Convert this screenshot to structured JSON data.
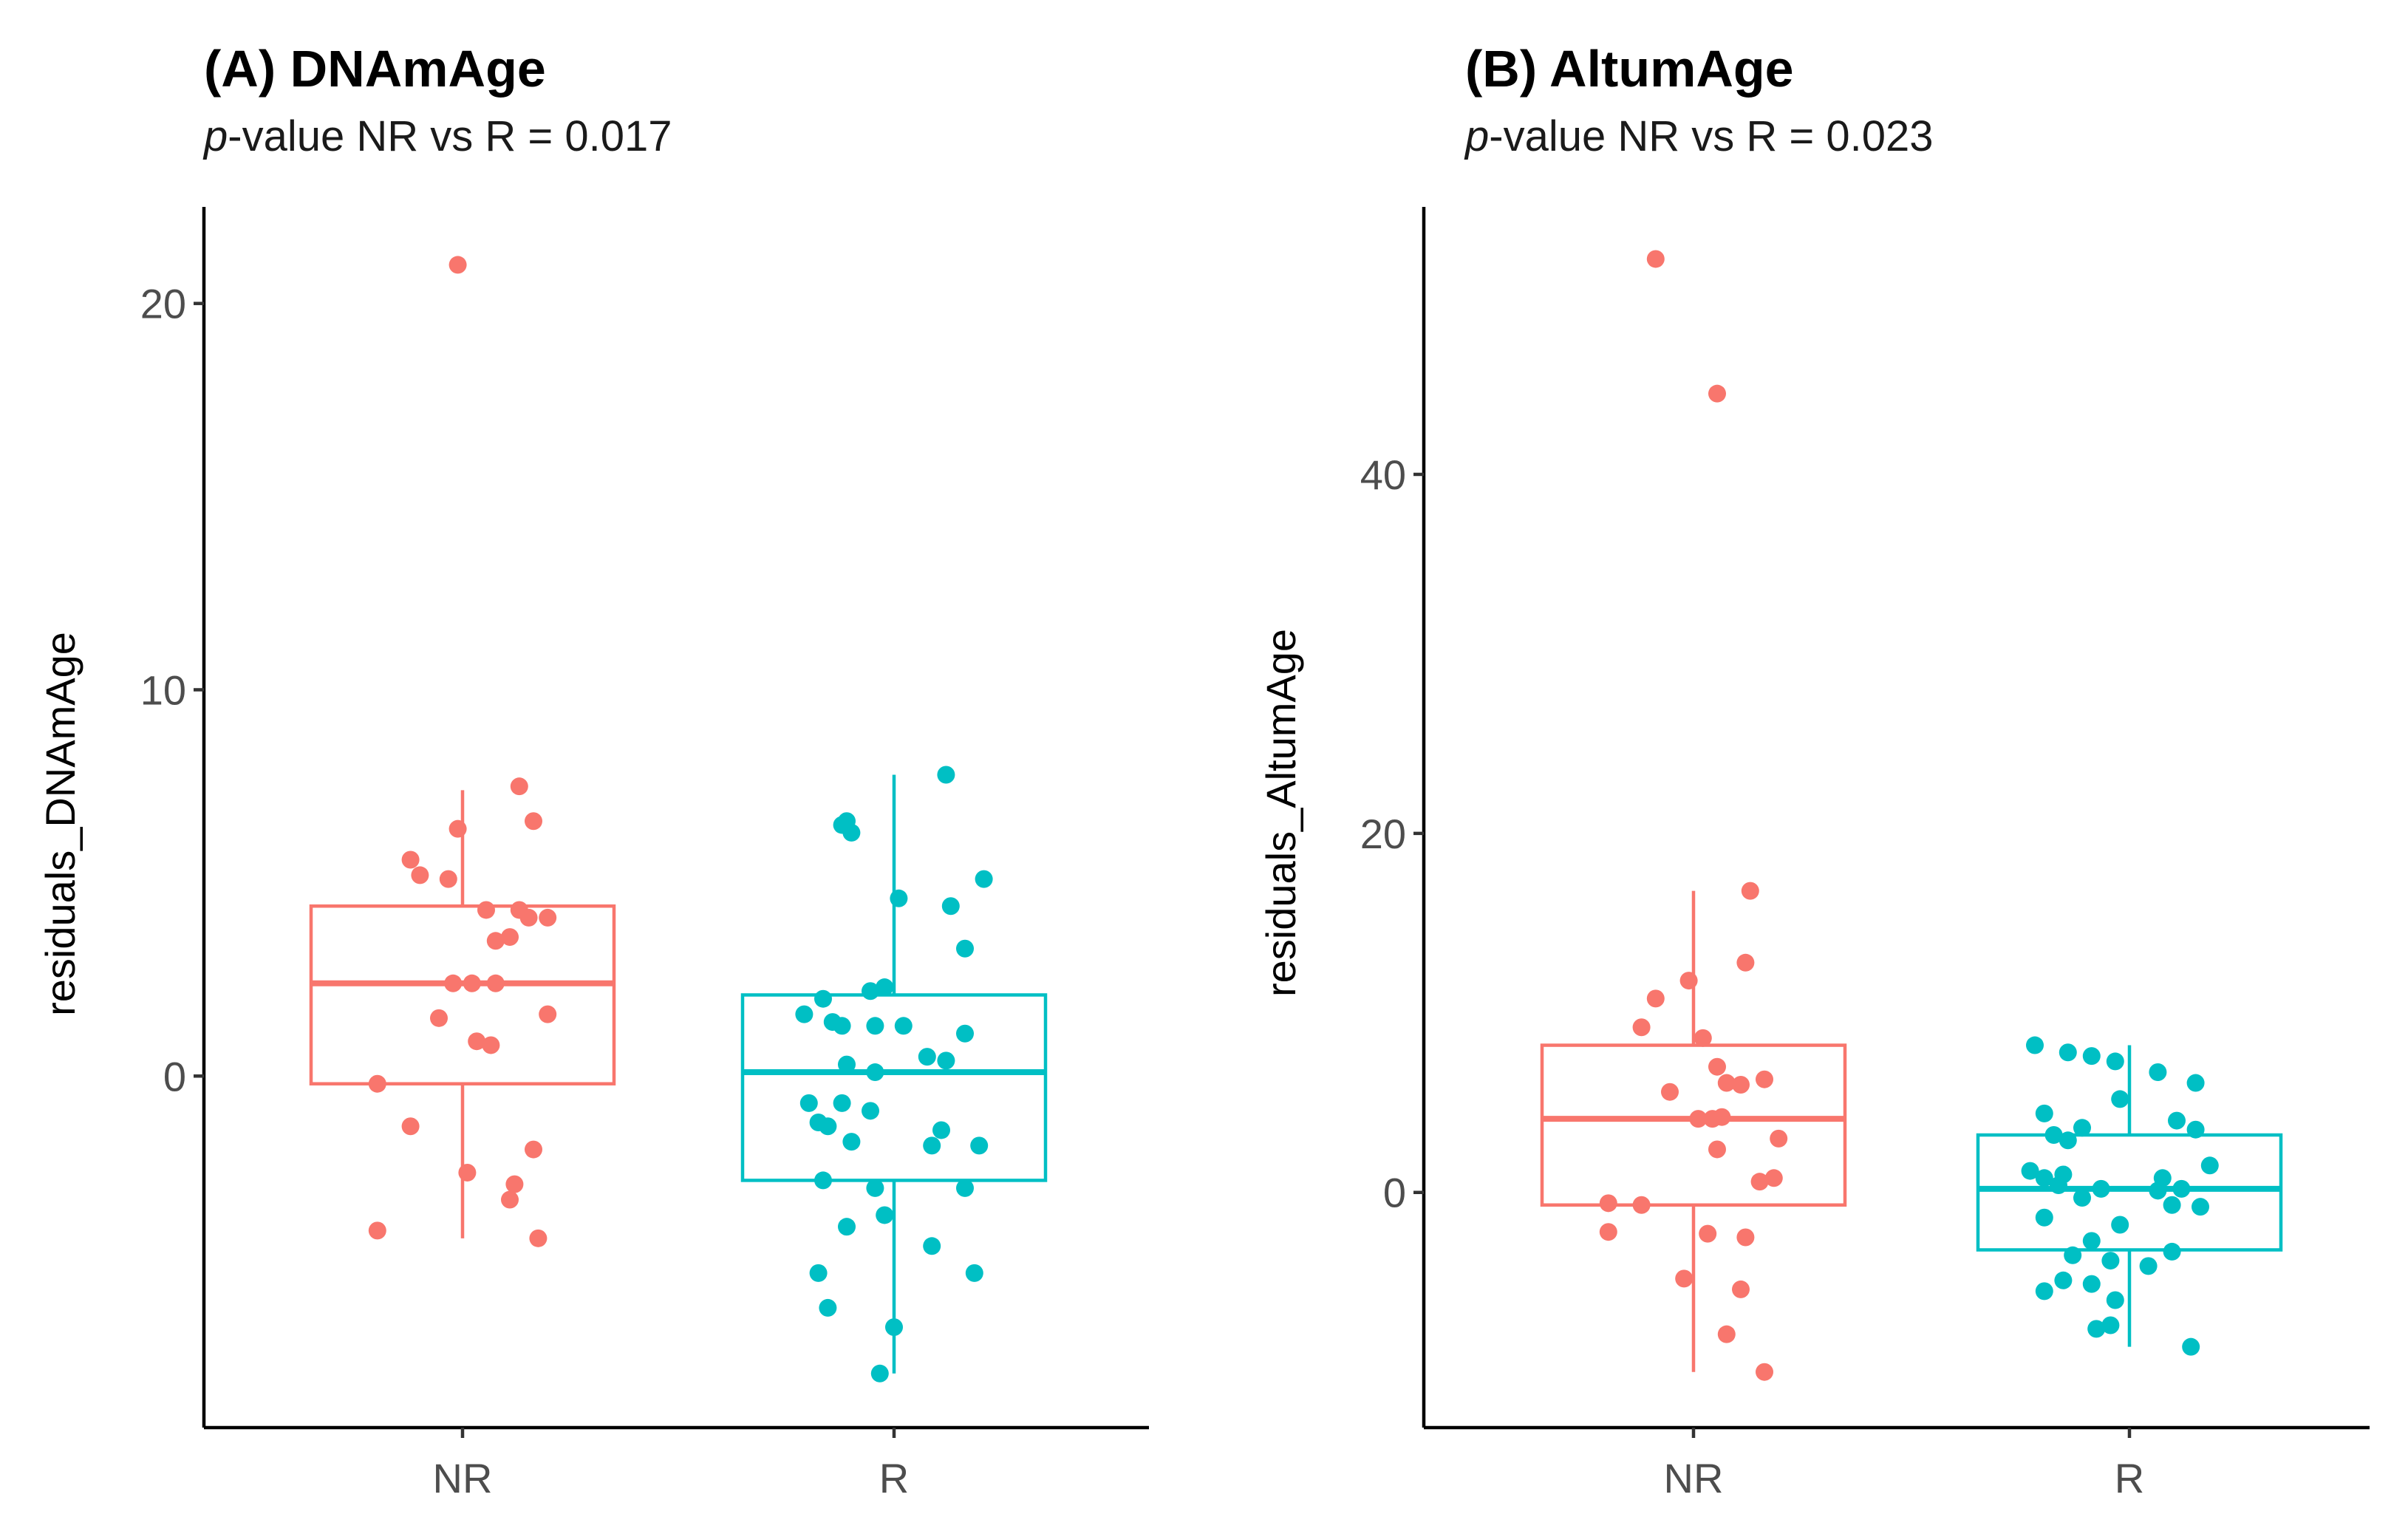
{
  "chart_data": [
    {
      "type": "box",
      "title": "(A) DNAmAge",
      "subtitle_prefix": "p",
      "subtitle_rest": "-value NR vs R = 0.017",
      "xlabel": "",
      "ylabel": "residuals_DNAmAge",
      "categories": [
        "NR",
        "R"
      ],
      "yticks": [
        "0",
        "10",
        "20"
      ],
      "ytick_values": [
        0,
        10,
        20
      ],
      "ylim": [
        -9.1,
        22.5
      ],
      "colors": {
        "NR": "#F8766D",
        "R": "#00BFC4"
      },
      "boxes": [
        {
          "category": "NR",
          "lower_whisker": -4.2,
          "q1": -0.2,
          "median": 2.4,
          "q3": 4.4,
          "upper_whisker": 7.4
        },
        {
          "category": "R",
          "lower_whisker": -7.7,
          "q1": -2.7,
          "median": 0.1,
          "q3": 2.1,
          "upper_whisker": 7.8
        }
      ],
      "points": [
        {
          "category": "NR",
          "jitter": -0.01,
          "y": 21.0
        },
        {
          "category": "NR",
          "jitter": 0.12,
          "y": 7.5
        },
        {
          "category": "NR",
          "jitter": 0.15,
          "y": 6.6
        },
        {
          "category": "NR",
          "jitter": -0.01,
          "y": 6.4
        },
        {
          "category": "NR",
          "jitter": -0.11,
          "y": 5.6
        },
        {
          "category": "NR",
          "jitter": -0.09,
          "y": 5.2
        },
        {
          "category": "NR",
          "jitter": -0.03,
          "y": 5.1
        },
        {
          "category": "NR",
          "jitter": 0.05,
          "y": 4.3
        },
        {
          "category": "NR",
          "jitter": 0.12,
          "y": 4.3
        },
        {
          "category": "NR",
          "jitter": 0.14,
          "y": 4.1
        },
        {
          "category": "NR",
          "jitter": 0.18,
          "y": 4.1
        },
        {
          "category": "NR",
          "jitter": 0.1,
          "y": 3.6
        },
        {
          "category": "NR",
          "jitter": 0.07,
          "y": 3.5
        },
        {
          "category": "NR",
          "jitter": -0.02,
          "y": 2.4
        },
        {
          "category": "NR",
          "jitter": 0.02,
          "y": 2.4
        },
        {
          "category": "NR",
          "jitter": 0.07,
          "y": 2.4
        },
        {
          "category": "NR",
          "jitter": 0.18,
          "y": 1.6
        },
        {
          "category": "NR",
          "jitter": -0.05,
          "y": 1.5
        },
        {
          "category": "NR",
          "jitter": 0.03,
          "y": 0.9
        },
        {
          "category": "NR",
          "jitter": 0.06,
          "y": 0.8
        },
        {
          "category": "NR",
          "jitter": -0.18,
          "y": -0.2
        },
        {
          "category": "NR",
          "jitter": -0.11,
          "y": -1.3
        },
        {
          "category": "NR",
          "jitter": 0.15,
          "y": -1.9
        },
        {
          "category": "NR",
          "jitter": 0.01,
          "y": -2.5
        },
        {
          "category": "NR",
          "jitter": 0.11,
          "y": -2.8
        },
        {
          "category": "NR",
          "jitter": 0.1,
          "y": -3.2
        },
        {
          "category": "NR",
          "jitter": -0.18,
          "y": -4.0
        },
        {
          "category": "NR",
          "jitter": 0.16,
          "y": -4.2
        },
        {
          "category": "R",
          "jitter": 0.11,
          "y": 7.8
        },
        {
          "category": "R",
          "jitter": -0.1,
          "y": 6.6
        },
        {
          "category": "R",
          "jitter": -0.11,
          "y": 6.5
        },
        {
          "category": "R",
          "jitter": -0.09,
          "y": 6.3
        },
        {
          "category": "R",
          "jitter": 0.19,
          "y": 5.1
        },
        {
          "category": "R",
          "jitter": 0.01,
          "y": 4.6
        },
        {
          "category": "R",
          "jitter": 0.12,
          "y": 4.4
        },
        {
          "category": "R",
          "jitter": 0.15,
          "y": 3.3
        },
        {
          "category": "R",
          "jitter": -0.02,
          "y": 2.3
        },
        {
          "category": "R",
          "jitter": -0.05,
          "y": 2.2
        },
        {
          "category": "R",
          "jitter": -0.15,
          "y": 2.0
        },
        {
          "category": "R",
          "jitter": -0.19,
          "y": 1.6
        },
        {
          "category": "R",
          "jitter": -0.13,
          "y": 1.4
        },
        {
          "category": "R",
          "jitter": -0.11,
          "y": 1.3
        },
        {
          "category": "R",
          "jitter": -0.04,
          "y": 1.3
        },
        {
          "category": "R",
          "jitter": 0.02,
          "y": 1.3
        },
        {
          "category": "R",
          "jitter": 0.15,
          "y": 1.1
        },
        {
          "category": "R",
          "jitter": 0.07,
          "y": 0.5
        },
        {
          "category": "R",
          "jitter": 0.11,
          "y": 0.4
        },
        {
          "category": "R",
          "jitter": -0.1,
          "y": 0.3
        },
        {
          "category": "R",
          "jitter": -0.04,
          "y": 0.1
        },
        {
          "category": "R",
          "jitter": -0.18,
          "y": -0.7
        },
        {
          "category": "R",
          "jitter": -0.11,
          "y": -0.7
        },
        {
          "category": "R",
          "jitter": -0.05,
          "y": -0.9
        },
        {
          "category": "R",
          "jitter": -0.16,
          "y": -1.2
        },
        {
          "category": "R",
          "jitter": -0.14,
          "y": -1.3
        },
        {
          "category": "R",
          "jitter": 0.1,
          "y": -1.4
        },
        {
          "category": "R",
          "jitter": -0.09,
          "y": -1.7
        },
        {
          "category": "R",
          "jitter": 0.18,
          "y": -1.8
        },
        {
          "category": "R",
          "jitter": 0.08,
          "y": -1.8
        },
        {
          "category": "R",
          "jitter": -0.15,
          "y": -2.7
        },
        {
          "category": "R",
          "jitter": -0.04,
          "y": -2.9
        },
        {
          "category": "R",
          "jitter": 0.15,
          "y": -2.9
        },
        {
          "category": "R",
          "jitter": -0.02,
          "y": -3.6
        },
        {
          "category": "R",
          "jitter": -0.1,
          "y": -3.9
        },
        {
          "category": "R",
          "jitter": 0.08,
          "y": -4.4
        },
        {
          "category": "R",
          "jitter": -0.16,
          "y": -5.1
        },
        {
          "category": "R",
          "jitter": 0.17,
          "y": -5.1
        },
        {
          "category": "R",
          "jitter": -0.14,
          "y": -6.0
        },
        {
          "category": "R",
          "jitter": 0.0,
          "y": -6.5
        },
        {
          "category": "R",
          "jitter": -0.03,
          "y": -7.7
        }
      ]
    },
    {
      "type": "box",
      "title": "(B) AltumAge",
      "subtitle_prefix": "p",
      "subtitle_rest": "-value NR vs R = 0.023",
      "xlabel": "",
      "ylabel": "residuals_AltumAge",
      "categories": [
        "NR",
        "R"
      ],
      "yticks": [
        "0",
        "20",
        "40"
      ],
      "ytick_values": [
        0,
        20,
        40
      ],
      "ylim": [
        -13.1,
        54.9
      ],
      "colors": {
        "NR": "#F8766D",
        "R": "#00BFC4"
      },
      "boxes": [
        {
          "category": "NR",
          "lower_whisker": -10.0,
          "q1": -0.7,
          "median": 4.1,
          "q3": 8.2,
          "upper_whisker": 16.8
        },
        {
          "category": "R",
          "lower_whisker": -8.6,
          "q1": -3.2,
          "median": 0.2,
          "q3": 3.2,
          "upper_whisker": 8.2
        }
      ],
      "points": [
        {
          "category": "NR",
          "jitter": -0.08,
          "y": 52.0
        },
        {
          "category": "NR",
          "jitter": 0.05,
          "y": 44.5
        },
        {
          "category": "NR",
          "jitter": 0.12,
          "y": 16.8
        },
        {
          "category": "NR",
          "jitter": 0.11,
          "y": 12.8
        },
        {
          "category": "NR",
          "jitter": -0.01,
          "y": 11.8
        },
        {
          "category": "NR",
          "jitter": -0.08,
          "y": 10.8
        },
        {
          "category": "NR",
          "jitter": -0.11,
          "y": 9.2
        },
        {
          "category": "NR",
          "jitter": 0.02,
          "y": 8.6
        },
        {
          "category": "NR",
          "jitter": 0.05,
          "y": 7.0
        },
        {
          "category": "NR",
          "jitter": 0.15,
          "y": 6.3
        },
        {
          "category": "NR",
          "jitter": 0.07,
          "y": 6.1
        },
        {
          "category": "NR",
          "jitter": 0.1,
          "y": 6.0
        },
        {
          "category": "NR",
          "jitter": -0.05,
          "y": 5.6
        },
        {
          "category": "NR",
          "jitter": 0.06,
          "y": 4.2
        },
        {
          "category": "NR",
          "jitter": 0.01,
          "y": 4.1
        },
        {
          "category": "NR",
          "jitter": 0.04,
          "y": 4.1
        },
        {
          "category": "NR",
          "jitter": 0.18,
          "y": 3.0
        },
        {
          "category": "NR",
          "jitter": 0.05,
          "y": 2.4
        },
        {
          "category": "NR",
          "jitter": 0.17,
          "y": 0.8
        },
        {
          "category": "NR",
          "jitter": 0.14,
          "y": 0.6
        },
        {
          "category": "NR",
          "jitter": -0.18,
          "y": -0.6
        },
        {
          "category": "NR",
          "jitter": -0.11,
          "y": -0.7
        },
        {
          "category": "NR",
          "jitter": -0.18,
          "y": -2.2
        },
        {
          "category": "NR",
          "jitter": 0.03,
          "y": -2.3
        },
        {
          "category": "NR",
          "jitter": 0.11,
          "y": -2.5
        },
        {
          "category": "NR",
          "jitter": -0.02,
          "y": -4.8
        },
        {
          "category": "NR",
          "jitter": 0.1,
          "y": -5.4
        },
        {
          "category": "NR",
          "jitter": 0.07,
          "y": -7.9
        },
        {
          "category": "NR",
          "jitter": 0.15,
          "y": -10.0
        },
        {
          "category": "R",
          "jitter": -0.2,
          "y": 8.2
        },
        {
          "category": "R",
          "jitter": -0.13,
          "y": 7.8
        },
        {
          "category": "R",
          "jitter": -0.08,
          "y": 7.6
        },
        {
          "category": "R",
          "jitter": -0.03,
          "y": 7.3
        },
        {
          "category": "R",
          "jitter": 0.06,
          "y": 6.7
        },
        {
          "category": "R",
          "jitter": 0.14,
          "y": 6.1
        },
        {
          "category": "R",
          "jitter": -0.02,
          "y": 5.2
        },
        {
          "category": "R",
          "jitter": -0.18,
          "y": 4.4
        },
        {
          "category": "R",
          "jitter": 0.1,
          "y": 4.0
        },
        {
          "category": "R",
          "jitter": -0.1,
          "y": 3.6
        },
        {
          "category": "R",
          "jitter": 0.14,
          "y": 3.5
        },
        {
          "category": "R",
          "jitter": -0.16,
          "y": 3.2
        },
        {
          "category": "R",
          "jitter": -0.13,
          "y": 2.9
        },
        {
          "category": "R",
          "jitter": 0.17,
          "y": 1.5
        },
        {
          "category": "R",
          "jitter": -0.21,
          "y": 1.2
        },
        {
          "category": "R",
          "jitter": -0.14,
          "y": 1.0
        },
        {
          "category": "R",
          "jitter": -0.18,
          "y": 0.8
        },
        {
          "category": "R",
          "jitter": 0.07,
          "y": 0.8
        },
        {
          "category": "R",
          "jitter": -0.15,
          "y": 0.4
        },
        {
          "category": "R",
          "jitter": -0.06,
          "y": 0.2
        },
        {
          "category": "R",
          "jitter": 0.11,
          "y": 0.2
        },
        {
          "category": "R",
          "jitter": 0.06,
          "y": 0.1
        },
        {
          "category": "R",
          "jitter": -0.1,
          "y": -0.3
        },
        {
          "category": "R",
          "jitter": 0.09,
          "y": -0.7
        },
        {
          "category": "R",
          "jitter": 0.15,
          "y": -0.8
        },
        {
          "category": "R",
          "jitter": -0.18,
          "y": -1.4
        },
        {
          "category": "R",
          "jitter": -0.02,
          "y": -1.8
        },
        {
          "category": "R",
          "jitter": -0.08,
          "y": -2.7
        },
        {
          "category": "R",
          "jitter": 0.09,
          "y": -3.3
        },
        {
          "category": "R",
          "jitter": -0.12,
          "y": -3.5
        },
        {
          "category": "R",
          "jitter": -0.04,
          "y": -3.8
        },
        {
          "category": "R",
          "jitter": 0.04,
          "y": -4.1
        },
        {
          "category": "R",
          "jitter": -0.14,
          "y": -4.9
        },
        {
          "category": "R",
          "jitter": -0.08,
          "y": -5.1
        },
        {
          "category": "R",
          "jitter": -0.18,
          "y": -5.5
        },
        {
          "category": "R",
          "jitter": -0.03,
          "y": -6.0
        },
        {
          "category": "R",
          "jitter": -0.04,
          "y": -7.4
        },
        {
          "category": "R",
          "jitter": -0.07,
          "y": -7.6
        },
        {
          "category": "R",
          "jitter": 0.13,
          "y": -8.6
        }
      ]
    }
  ]
}
